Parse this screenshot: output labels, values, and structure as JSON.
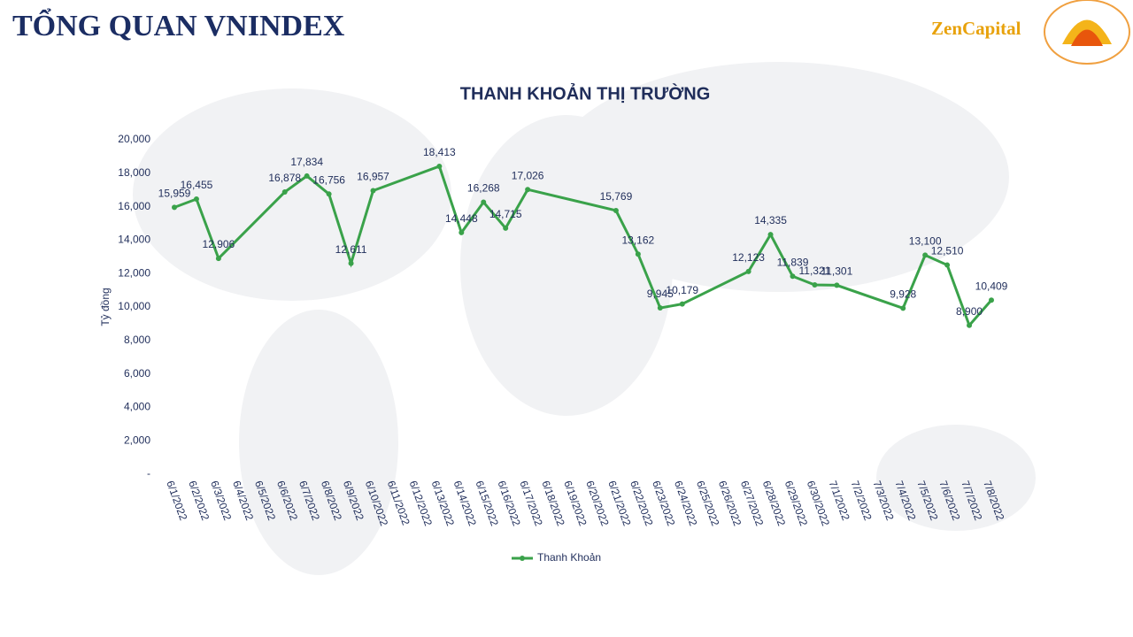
{
  "header": {
    "title": "TỔNG QUAN VNINDEX",
    "brand": "ZenCapital"
  },
  "chart_data": {
    "type": "line",
    "title": "THANH KHOẢN THỊ TRƯỜNG",
    "y_label": "Tỷ đồng",
    "xticks": [
      "6/1/2022",
      "6/2/2022",
      "6/3/2022",
      "6/4/2022",
      "6/5/2022",
      "6/6/2022",
      "6/7/2022",
      "6/8/2022",
      "6/9/2022",
      "6/10/2022",
      "6/11/2022",
      "6/12/2022",
      "6/13/2022",
      "6/14/2022",
      "6/15/2022",
      "6/16/2022",
      "6/17/2022",
      "6/18/2022",
      "6/19/2022",
      "6/20/2022",
      "6/21/2022",
      "6/22/2022",
      "6/23/2022",
      "6/24/2022",
      "6/25/2022",
      "6/26/2022",
      "6/27/2022",
      "6/28/2022",
      "6/29/2022",
      "6/30/2022",
      "7/1/2022",
      "7/2/2022",
      "7/3/2022",
      "7/4/2022",
      "7/5/2022",
      "7/6/2022",
      "7/7/2022",
      "7/8/2022"
    ],
    "x": [
      "6/1/2022",
      "6/2/2022",
      "6/3/2022",
      "6/6/2022",
      "6/7/2022",
      "6/8/2022",
      "6/9/2022",
      "6/10/2022",
      "6/13/2022",
      "6/14/2022",
      "6/15/2022",
      "6/16/2022",
      "6/17/2022",
      "6/21/2022",
      "6/22/2022",
      "6/23/2022",
      "6/24/2022",
      "6/27/2022",
      "6/28/2022",
      "6/29/2022",
      "6/30/2022",
      "7/1/2022",
      "7/4/2022",
      "7/5/2022",
      "7/6/2022",
      "7/7/2022",
      "7/8/2022"
    ],
    "series": [
      {
        "name": "Thanh Khoản",
        "color": "#3aa24a",
        "values": [
          15959,
          16455,
          12906,
          16878,
          17834,
          16756,
          12611,
          16957,
          18413,
          14448,
          16268,
          14715,
          17026,
          15769,
          13162,
          9945,
          10179,
          12123,
          14335,
          11839,
          11321,
          11301,
          9928,
          13100,
          12510,
          8900,
          10409
        ],
        "value_labels": [
          "15,959",
          "16,455",
          "12,906",
          "16,878",
          "17,834",
          "16,756",
          "12,611",
          "16,957",
          "18,413",
          "14,448",
          "16,268",
          "14,715",
          "17,026",
          "15,769",
          "13,162",
          "9,945",
          "10,179",
          "12,123",
          "14,335",
          "11,839",
          "11,321",
          "11,301",
          "9,928",
          "13,100",
          "12,510",
          "8,900",
          "10,409"
        ]
      }
    ],
    "ylim": [
      0,
      20000
    ],
    "yticks": [
      {
        "value": 0,
        "label": "-"
      },
      {
        "value": 2000,
        "label": "2,000"
      },
      {
        "value": 4000,
        "label": "4,000"
      },
      {
        "value": 6000,
        "label": "6,000"
      },
      {
        "value": 8000,
        "label": "8,000"
      },
      {
        "value": 10000,
        "label": "10,000"
      },
      {
        "value": 12000,
        "label": "12,000"
      },
      {
        "value": 14000,
        "label": "14,000"
      },
      {
        "value": 16000,
        "label": "16,000"
      },
      {
        "value": 18000,
        "label": "18,000"
      },
      {
        "value": 20000,
        "label": "20,000"
      }
    ],
    "legend": "bottom"
  }
}
